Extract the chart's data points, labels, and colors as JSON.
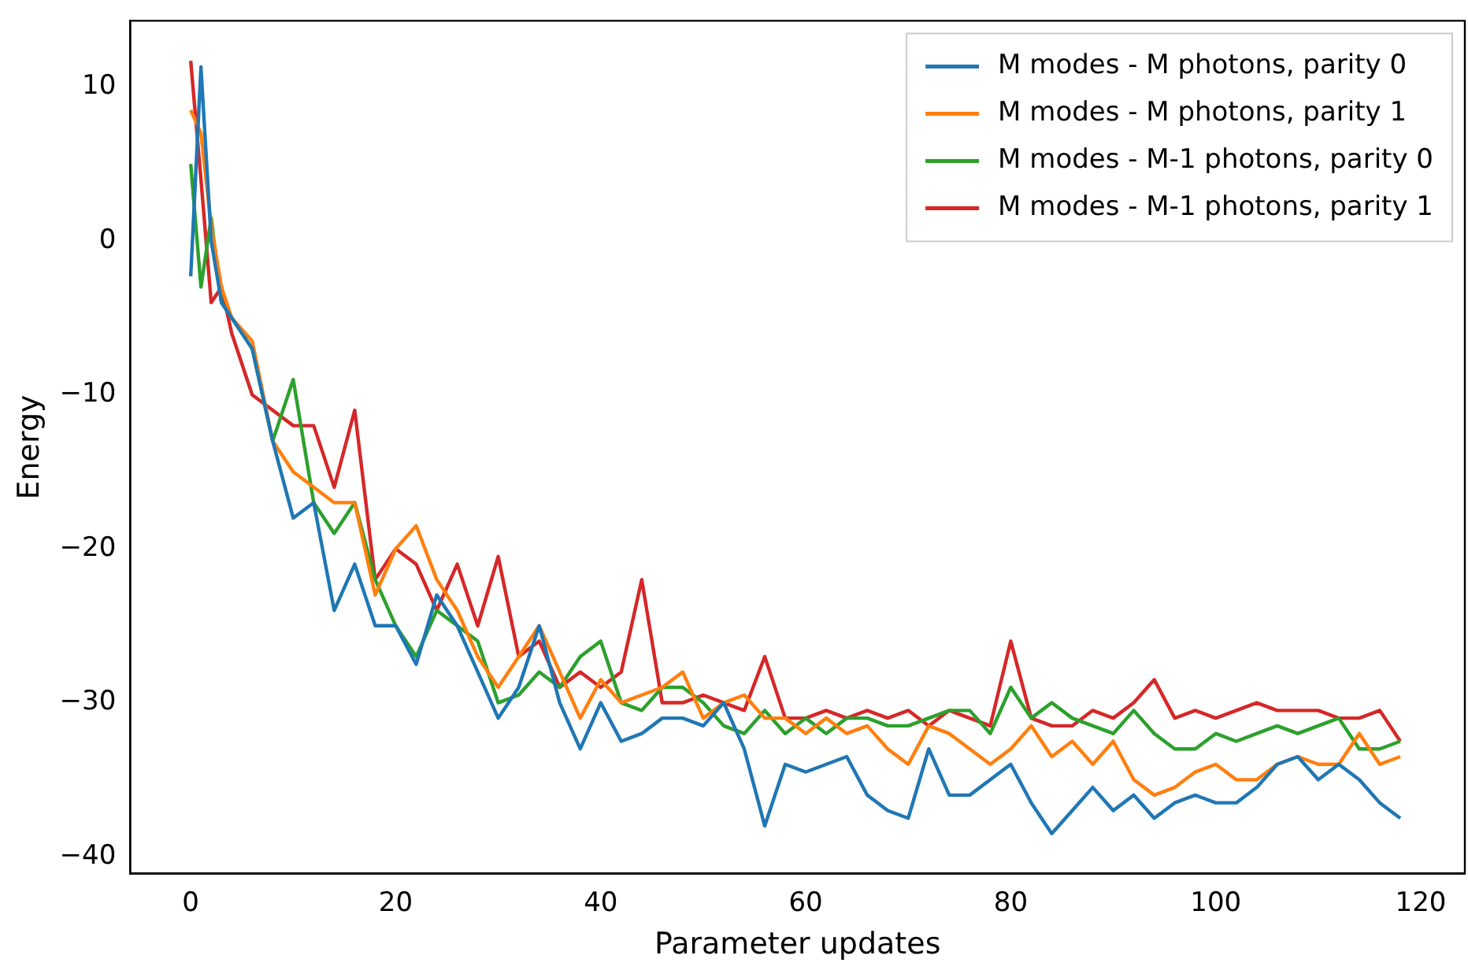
{
  "chart_data": {
    "type": "line",
    "xlabel": "Parameter updates",
    "ylabel": "Energy",
    "x": [
      0,
      1,
      2,
      3,
      4,
      6,
      8,
      10,
      12,
      14,
      16,
      18,
      20,
      22,
      24,
      26,
      28,
      30,
      32,
      34,
      36,
      38,
      40,
      42,
      44,
      46,
      48,
      50,
      52,
      54,
      56,
      58,
      60,
      62,
      64,
      66,
      68,
      70,
      72,
      74,
      76,
      78,
      80,
      82,
      84,
      86,
      88,
      90,
      92,
      94,
      96,
      98,
      100,
      102,
      104,
      106,
      108,
      110,
      112,
      114,
      116,
      118
    ],
    "series": [
      {
        "name": "M modes - M photons, parity 0",
        "color": "#1f77b4",
        "values": [
          -2.3,
          11.3,
          0,
          -4,
          -5,
          -7,
          -13,
          -18,
          -17,
          -24,
          -21,
          -25,
          -25,
          -27.5,
          -23,
          -25,
          -28,
          -31,
          -29,
          -25,
          -30,
          -33,
          -30,
          -32.5,
          -32,
          -31,
          -31,
          -31.5,
          -30,
          -33,
          -38,
          -34,
          -34.5,
          -34,
          -33.5,
          -36,
          -37,
          -37.5,
          -33,
          -36,
          -36,
          -35,
          -34,
          -36.5,
          -38.5,
          -37,
          -35.5,
          -37,
          -36,
          -37.5,
          -36.5,
          -36,
          -36.5,
          -36.5,
          -35.5,
          -34,
          -33.5,
          -35,
          -34,
          -35,
          -36.5,
          -37.5
        ]
      },
      {
        "name": "M modes - M photons, parity 1",
        "color": "#ff7f0e",
        "values": [
          8.5,
          7,
          1,
          -3,
          -5,
          -6.5,
          -13,
          -15,
          -16,
          -17,
          -17,
          -23,
          -20,
          -18.5,
          -22,
          -24,
          -27,
          -29,
          -27,
          -25,
          -28,
          -31,
          -28.5,
          -30,
          -29.5,
          -29,
          -28,
          -31,
          -30,
          -29.5,
          -31,
          -31,
          -32,
          -31,
          -32,
          -31.5,
          -33,
          -34,
          -31.5,
          -32,
          -33,
          -34,
          -33,
          -31.5,
          -33.5,
          -32.5,
          -34,
          -32.5,
          -35,
          -36,
          -35.5,
          -34.5,
          -34,
          -35,
          -35,
          -34,
          -33.5,
          -34,
          -34,
          -32,
          -34,
          -33.5
        ]
      },
      {
        "name": "M modes - M-1 photons, parity 0",
        "color": "#2ca02c",
        "values": [
          5,
          -3,
          1.5,
          -4,
          -5,
          -7,
          -13,
          -9,
          -17,
          -19,
          -17,
          -22,
          -25,
          -27,
          -24,
          -25,
          -26,
          -30,
          -29.5,
          -28,
          -29,
          -27,
          -26,
          -30,
          -30.5,
          -29,
          -29,
          -30,
          -31.5,
          -32,
          -30.5,
          -32,
          -31,
          -32,
          -31,
          -31,
          -31.5,
          -31.5,
          -31,
          -30.5,
          -30.5,
          -32,
          -29,
          -31,
          -30,
          -31,
          -31.5,
          -32,
          -30.5,
          -32,
          -33,
          -33,
          -32,
          -32.5,
          -32,
          -31.5,
          -32,
          -31.5,
          -31,
          -33,
          -33,
          -32.5
        ]
      },
      {
        "name": "M modes - M-1 photons, parity 1",
        "color": "#d62728",
        "values": [
          11.7,
          4,
          -4,
          -3,
          -6,
          -10,
          -11,
          -12,
          -12,
          -16,
          -11,
          -22,
          -20,
          -21,
          -24,
          -21,
          -25,
          -20.5,
          -27,
          -26,
          -29,
          -28,
          -29,
          -28,
          -22,
          -30,
          -30,
          -29.5,
          -30,
          -30.5,
          -27,
          -31,
          -31,
          -30.5,
          -31,
          -30.5,
          -31,
          -30.5,
          -31.5,
          -30.5,
          -31,
          -31.5,
          -26,
          -31,
          -31.5,
          -31.5,
          -30.5,
          -31,
          -30,
          -28.5,
          -31,
          -30.5,
          -31,
          -30.5,
          -30,
          -30.5,
          -30.5,
          -30.5,
          -31,
          -31,
          -30.5,
          -32.5
        ]
      }
    ],
    "xlim": [
      -5.9,
      124.3
    ],
    "xticks": [
      0,
      20,
      40,
      60,
      80,
      100,
      120
    ],
    "ylim": [
      -41.1,
      14.3
    ],
    "yticks": [
      -40,
      -30,
      -20,
      -10,
      0,
      10
    ],
    "grid": false,
    "legend": "top right",
    "marker": "none",
    "line_style": "solid"
  }
}
